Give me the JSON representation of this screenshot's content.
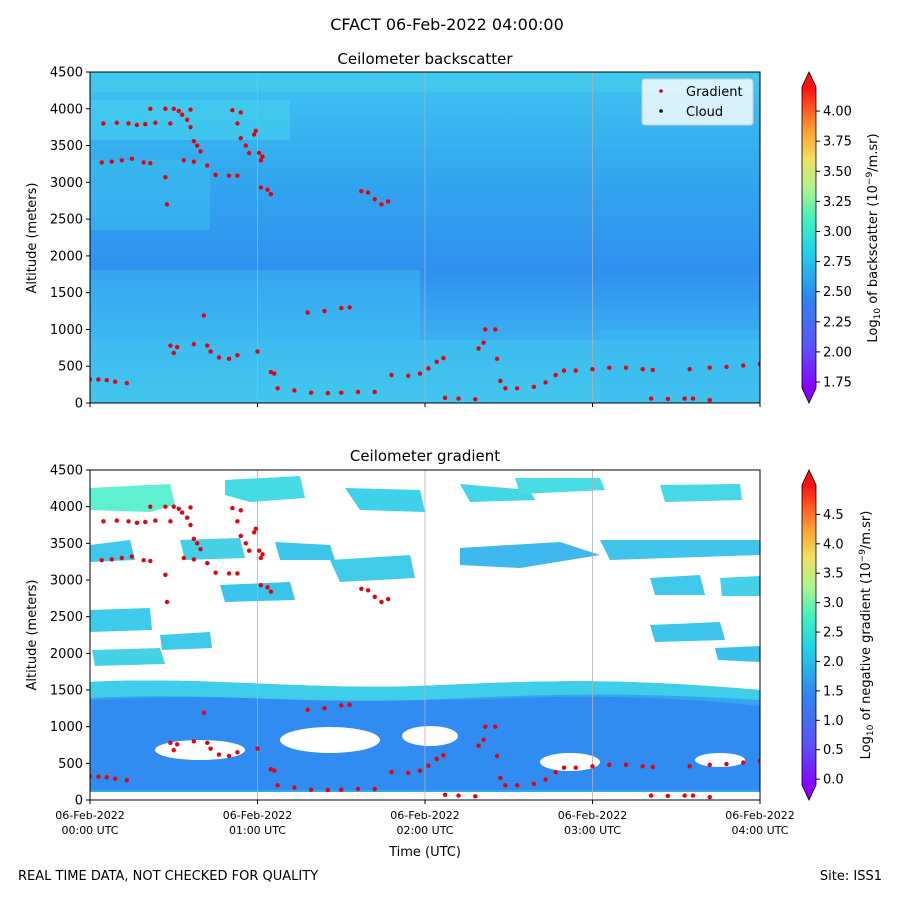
{
  "figure_title": "CFACT 06-Feb-2022 04:00:00",
  "footer": {
    "disclaimer": "REAL TIME DATA, NOT CHECKED FOR QUALITY",
    "site": "Site: ISS1"
  },
  "colors": {
    "gradient_marker": "#e8000b",
    "cloud_marker": "#000000",
    "background_field": "#2f86f0",
    "mid_field": "#35b8f0",
    "light_field": "#3fd8ea",
    "grid": "#b0b0b0"
  },
  "chart_data": [
    {
      "type": "heatmap",
      "title": "Ceilometer backscatter",
      "xlabel": "",
      "ylabel": "Altitude (meters)",
      "ylim": [
        0,
        4500
      ],
      "yticks": [
        "0",
        "500",
        "1000",
        "1500",
        "2000",
        "2500",
        "3000",
        "3500",
        "4000",
        "4500"
      ],
      "x_hours": [
        0,
        1,
        2,
        3,
        4
      ],
      "colorbar": {
        "label_prefix": "Log",
        "label_sub": "10",
        "label_text": " of backscatter (10",
        "label_exp": "−9",
        "label_suffix": "/m.sr)",
        "range": [
          1.7,
          4.2
        ],
        "ticks": [
          "4.00",
          "3.75",
          "3.50",
          "3.25",
          "3.00",
          "2.75",
          "2.50",
          "2.25",
          "2.00",
          "1.75"
        ]
      },
      "legend": {
        "position": "top-right",
        "items": [
          {
            "label": "Gradient"
          },
          {
            "label": "Cloud"
          }
        ]
      }
    },
    {
      "type": "heatmap",
      "title": "Ceilometer gradient",
      "xlabel": "Time (UTC)",
      "ylabel": "Altitude (meters)",
      "ylim": [
        0,
        4500
      ],
      "yticks": [
        "0",
        "500",
        "1000",
        "1500",
        "2000",
        "2500",
        "3000",
        "3500",
        "4000",
        "4500"
      ],
      "x_hours": [
        0,
        1,
        2,
        3,
        4
      ],
      "xtick_dates": [
        "06-Feb-2022",
        "06-Feb-2022",
        "06-Feb-2022",
        "06-Feb-2022",
        "06-Feb-2022"
      ],
      "xtick_times": [
        "00:00 UTC",
        "01:00 UTC",
        "02:00 UTC",
        "03:00 UTC",
        "04:00 UTC"
      ],
      "colorbar": {
        "label_prefix": "Log",
        "label_sub": "10",
        "label_text": " of negative gradient (10",
        "label_exp": "−9",
        "label_suffix": "/m.sr)",
        "range": [
          -0.1,
          5.0
        ],
        "ticks": [
          "4.5",
          "4.0",
          "3.5",
          "3.0",
          "2.5",
          "2.0",
          "1.5",
          "1.0",
          "0.5",
          "0.0"
        ]
      }
    }
  ],
  "gradient_points": [
    [
      0.0,
      320
    ],
    [
      0.05,
      320
    ],
    [
      0.1,
      310
    ],
    [
      0.15,
      290
    ],
    [
      0.22,
      270
    ],
    [
      0.07,
      3270
    ],
    [
      0.13,
      3280
    ],
    [
      0.19,
      3300
    ],
    [
      0.25,
      3320
    ],
    [
      0.32,
      3270
    ],
    [
      0.36,
      3260
    ],
    [
      0.08,
      3800
    ],
    [
      0.16,
      3810
    ],
    [
      0.23,
      3800
    ],
    [
      0.28,
      3780
    ],
    [
      0.33,
      3790
    ],
    [
      0.39,
      3810
    ],
    [
      0.36,
      4000
    ],
    [
      0.45,
      4000
    ],
    [
      0.5,
      4000
    ],
    [
      0.53,
      3970
    ],
    [
      0.6,
      3990
    ],
    [
      0.48,
      3800
    ],
    [
      0.55,
      3920
    ],
    [
      0.58,
      3850
    ],
    [
      0.6,
      3750
    ],
    [
      0.62,
      3560
    ],
    [
      0.64,
      3500
    ],
    [
      0.66,
      3420
    ],
    [
      0.56,
      3300
    ],
    [
      0.62,
      3280
    ],
    [
      0.7,
      3230
    ],
    [
      0.75,
      3100
    ],
    [
      0.83,
      3090
    ],
    [
      0.88,
      3090
    ],
    [
      0.45,
      3070
    ],
    [
      0.46,
      2700
    ],
    [
      0.48,
      780
    ],
    [
      0.52,
      760
    ],
    [
      0.5,
      680
    ],
    [
      0.68,
      1190
    ],
    [
      0.62,
      800
    ],
    [
      0.7,
      780
    ],
    [
      0.72,
      700
    ],
    [
      0.77,
      620
    ],
    [
      0.83,
      600
    ],
    [
      0.88,
      650
    ],
    [
      0.85,
      3980
    ],
    [
      0.9,
      3950
    ],
    [
      0.88,
      3800
    ],
    [
      0.9,
      3600
    ],
    [
      0.93,
      3500
    ],
    [
      0.95,
      3400
    ],
    [
      0.98,
      3650
    ],
    [
      0.99,
      3700
    ],
    [
      1.01,
      3400
    ],
    [
      1.03,
      3350
    ],
    [
      1.02,
      3300
    ],
    [
      1.0,
      700
    ],
    [
      1.02,
      2930
    ],
    [
      1.06,
      2900
    ],
    [
      1.08,
      2840
    ],
    [
      1.08,
      420
    ],
    [
      1.1,
      400
    ],
    [
      1.12,
      200
    ],
    [
      1.22,
      170
    ],
    [
      1.32,
      140
    ],
    [
      1.42,
      135
    ],
    [
      1.5,
      140
    ],
    [
      1.6,
      150
    ],
    [
      1.7,
      150
    ],
    [
      1.3,
      1230
    ],
    [
      1.4,
      1250
    ],
    [
      1.5,
      1290
    ],
    [
      1.55,
      1300
    ],
    [
      1.62,
      2880
    ],
    [
      1.66,
      2860
    ],
    [
      1.7,
      2770
    ],
    [
      1.74,
      2700
    ],
    [
      1.78,
      2740
    ],
    [
      1.8,
      380
    ],
    [
      1.9,
      370
    ],
    [
      1.97,
      400
    ],
    [
      2.02,
      470
    ],
    [
      2.07,
      560
    ],
    [
      2.11,
      610
    ],
    [
      2.12,
      70
    ],
    [
      2.2,
      60
    ],
    [
      2.3,
      50
    ],
    [
      2.32,
      740
    ],
    [
      2.35,
      820
    ],
    [
      2.36,
      1000
    ],
    [
      2.42,
      1000
    ],
    [
      2.43,
      600
    ],
    [
      2.45,
      300
    ],
    [
      2.48,
      200
    ],
    [
      2.55,
      200
    ],
    [
      2.65,
      220
    ],
    [
      2.72,
      280
    ],
    [
      2.78,
      380
    ],
    [
      2.83,
      440
    ],
    [
      2.9,
      440
    ],
    [
      3.0,
      460
    ],
    [
      3.1,
      480
    ],
    [
      3.2,
      480
    ],
    [
      3.3,
      460
    ],
    [
      3.36,
      450
    ],
    [
      3.35,
      60
    ],
    [
      3.45,
      55
    ],
    [
      3.55,
      60
    ],
    [
      3.6,
      60
    ],
    [
      3.7,
      40
    ],
    [
      3.58,
      460
    ],
    [
      3.7,
      480
    ],
    [
      3.8,
      490
    ],
    [
      3.9,
      510
    ],
    [
      4.0,
      530
    ]
  ]
}
